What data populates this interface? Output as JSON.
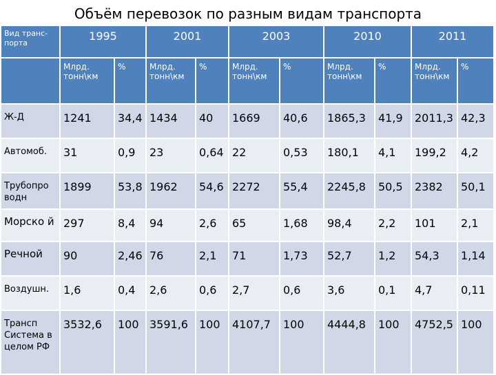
{
  "title": "Объём перевозок по разным видам транспорта",
  "corner_label": "Вид транс-порта",
  "years": [
    "1995",
    "2001",
    "2003",
    "2010",
    "2011"
  ],
  "sub_headers": [
    "Млрд. тонн\\км",
    "%"
  ],
  "rows": [
    {
      "label": "Ж-Д",
      "values": [
        "1241",
        "34,4",
        "1434",
        "40",
        "1669",
        "40,6",
        "1865,3",
        "41,9",
        "2011,3",
        "42,3"
      ]
    },
    {
      "label": "Автомоб.",
      "values": [
        "31",
        "0,9",
        "23",
        "0,64",
        "22",
        "0,53",
        "180,1",
        "4,1",
        "199,2",
        "4,2"
      ]
    },
    {
      "label": "Трубопро водн",
      "values": [
        "1899",
        "53,8",
        "1962",
        "54,6",
        "2272",
        "55,4",
        "2245,8",
        "50,5",
        "2382",
        "50,1"
      ]
    },
    {
      "label": "Морско й",
      "values": [
        "297",
        "8,4",
        "94",
        "2,6",
        "65",
        "1,68",
        "98,4",
        "2,2",
        "101",
        "2,1"
      ]
    },
    {
      "label": "Речной",
      "values": [
        "90",
        "2,46",
        "76",
        "2,1",
        "71",
        "1,73",
        "52,7",
        "1,2",
        "54,3",
        "1,14"
      ]
    },
    {
      "label": "Воздушн.",
      "values": [
        "1,6",
        "0,4",
        "2,6",
        "0,6",
        "2,7",
        "0,6",
        "3,6",
        "0,1",
        "4,7",
        "0,11"
      ]
    },
    {
      "label": "Трансп Система в целом РФ",
      "values": [
        "3532,6",
        "100",
        "3591,6",
        "100",
        "4107,7",
        "100",
        "4444,8",
        "100",
        "4752,5",
        "100"
      ]
    }
  ],
  "colors": {
    "header": "#4f81bd",
    "band_dark": "#d0d8e8",
    "band_light": "#e9edf4"
  }
}
